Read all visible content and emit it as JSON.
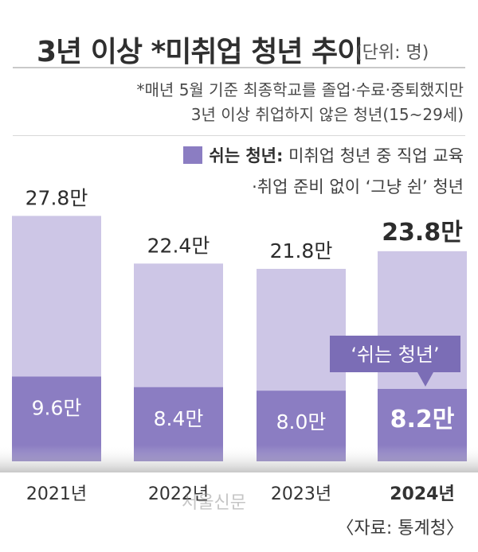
{
  "header": {
    "title": "3년 이상 *미취업 청년 추이",
    "unit": "(단위: 명)"
  },
  "notes": {
    "line1": "*매년 5월 기준 최종학교를 졸업·수료·중퇴했지만",
    "line2": "3년 이상 취업하지 않은 청년(15~29세)"
  },
  "legend": {
    "label": "쉬는 청년:",
    "desc1": "미취업 청년 중 직업 교육",
    "desc2": "·취업 준비 없이 ‘그냥 쉰’ 청년"
  },
  "chart_data": {
    "type": "bar",
    "categories": [
      "2021년",
      "2022년",
      "2023년",
      "2024년"
    ],
    "series": [
      {
        "name": "쉬는 청년",
        "values": [
          9.6,
          8.4,
          8.0,
          8.2
        ]
      }
    ],
    "totals": [
      27.8,
      22.4,
      21.8,
      23.8
    ],
    "total_labels": [
      "27.8만",
      "22.4만",
      "21.8만",
      "23.8만"
    ],
    "sub_labels": [
      "9.6만",
      "8.4만",
      "8.0만",
      "8.2만"
    ],
    "highlight_index": 3,
    "callout": "‘쉬는 청년’",
    "colors": {
      "total": "#cdc6e6",
      "sub": "#8b7dc2",
      "callout": "#7b6db6"
    }
  },
  "source": "〈자료: 통계청〉",
  "watermark": "서울신문"
}
